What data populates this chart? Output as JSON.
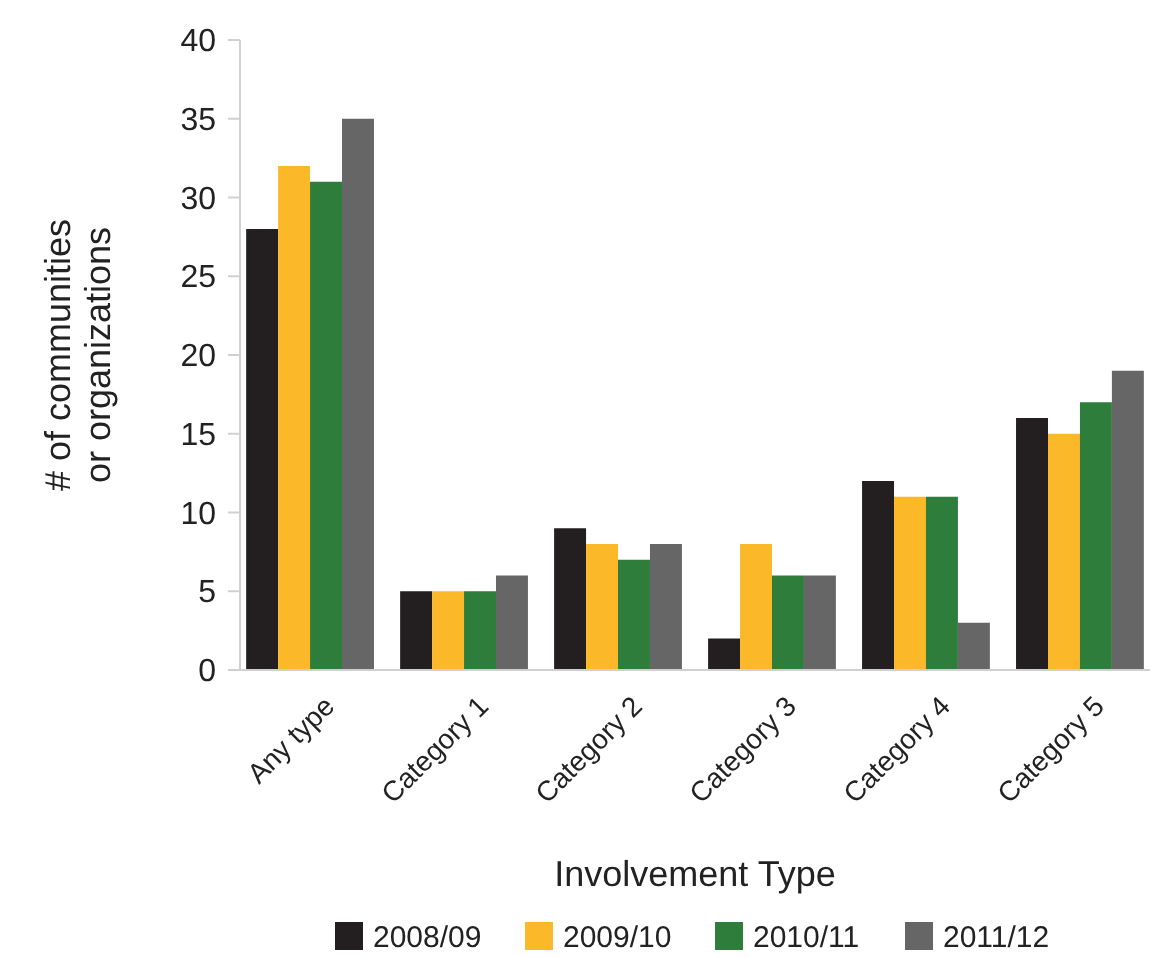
{
  "chart_data": {
    "type": "bar",
    "xlabel": "Involvement Type",
    "ylabel": "# of communities\nor organizations",
    "categories": [
      "Any type",
      "Category 1",
      "Category 2",
      "Category 3",
      "Category 4",
      "Category 5"
    ],
    "series": [
      {
        "name": "2008/09",
        "color": "#231f20",
        "values": [
          28,
          5,
          9,
          2,
          12,
          16
        ]
      },
      {
        "name": "2009/10",
        "color": "#fbb829",
        "values": [
          32,
          5,
          8,
          8,
          11,
          15
        ]
      },
      {
        "name": "2010/11",
        "color": "#2e7d3a",
        "values": [
          31,
          5,
          7,
          6,
          11,
          17
        ]
      },
      {
        "name": "2011/12",
        "color": "#666666",
        "values": [
          35,
          6,
          8,
          6,
          3,
          19
        ]
      }
    ],
    "ylim": [
      0,
      40
    ],
    "yticks": [
      0,
      5,
      10,
      15,
      20,
      25,
      30,
      35,
      40
    ],
    "grid": false,
    "legend": "bottom"
  }
}
